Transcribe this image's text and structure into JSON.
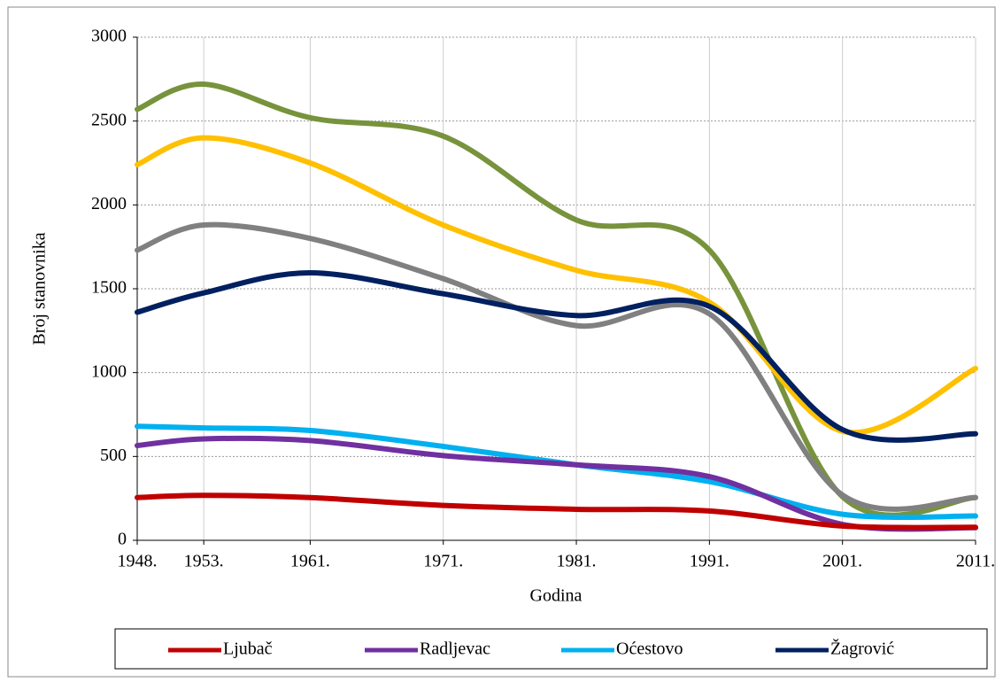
{
  "chart_data": {
    "type": "line",
    "x": [
      1948,
      1953,
      1961,
      1971,
      1981,
      1991,
      2001,
      2011
    ],
    "xlim": [
      1948,
      2011
    ],
    "xticks": [
      {
        "value": 1948,
        "label": "1948."
      },
      {
        "value": 1953,
        "label": "1953."
      },
      {
        "value": 1961,
        "label": "1961."
      },
      {
        "value": 1971,
        "label": "1971."
      },
      {
        "value": 1981,
        "label": "1981."
      },
      {
        "value": 1991,
        "label": "1991."
      },
      {
        "value": 2001,
        "label": "2001."
      },
      {
        "value": 2011,
        "label": "2011."
      }
    ],
    "ylim": [
      0,
      3000
    ],
    "yticks": [
      0,
      500,
      1000,
      1500,
      2000,
      2500,
      3000
    ],
    "xlabel": "Godina",
    "ylabel": "Broj stanovnika",
    "grid": true,
    "series": [
      {
        "color": "#77933c",
        "values": [
          2570,
          2720,
          2520,
          2410,
          1910,
          1730,
          260,
          255
        ]
      },
      {
        "color": "#ffc000",
        "values": [
          2240,
          2400,
          2250,
          1880,
          1610,
          1420,
          650,
          1025
        ]
      },
      {
        "color": "#808080",
        "values": [
          1730,
          1880,
          1800,
          1560,
          1280,
          1350,
          270,
          255
        ]
      },
      {
        "name": "Žagrović",
        "color": "#002060",
        "values": [
          1360,
          1475,
          1595,
          1470,
          1340,
          1395,
          660,
          635
        ]
      },
      {
        "name": "Oćestovo",
        "color": "#00b0f0",
        "values": [
          680,
          670,
          655,
          560,
          450,
          350,
          155,
          145
        ]
      },
      {
        "name": "Radljevac",
        "color": "#7030a0",
        "values": [
          565,
          605,
          595,
          505,
          450,
          380,
          95,
          75
        ]
      },
      {
        "name": "Ljubač",
        "color": "#c00000",
        "values": [
          255,
          268,
          255,
          208,
          185,
          175,
          85,
          78
        ]
      }
    ]
  }
}
